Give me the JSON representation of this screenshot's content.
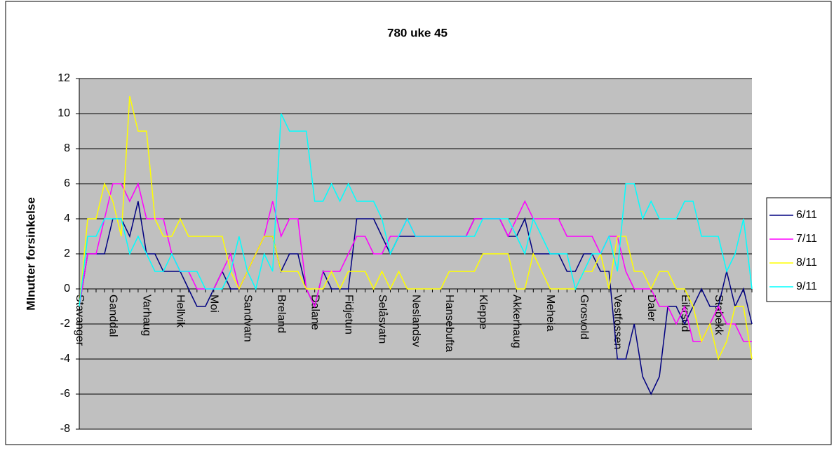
{
  "chart_data": {
    "type": "line",
    "title": "780 uke 45",
    "y_label": "MInutter forsinkelse",
    "categories": [
      "Stavanger",
      null,
      null,
      null,
      "Ganddal",
      null,
      null,
      null,
      "Varhaug",
      null,
      null,
      null,
      "Hellvik",
      null,
      null,
      null,
      "Moi",
      null,
      null,
      null,
      "Sandvatn",
      null,
      null,
      null,
      "Breland",
      null,
      null,
      null,
      "Dalane",
      null,
      null,
      null,
      "Fidjetun",
      null,
      null,
      null,
      "Selåsvatn",
      null,
      null,
      null,
      "Neslandsv",
      null,
      null,
      null,
      "Hansebufta",
      null,
      null,
      null,
      "Kleppe",
      null,
      null,
      null,
      "Akkerhaug",
      null,
      null,
      null,
      "Meheia",
      null,
      null,
      null,
      "Grosvold",
      null,
      null,
      null,
      "Vestfossen",
      null,
      null,
      null,
      "Daler",
      null,
      null,
      null,
      "Eikrsud",
      null,
      null,
      null,
      "Stabekk",
      null,
      null,
      null,
      null
    ],
    "series": [
      {
        "name": "6/11",
        "color": "#000080",
        "values": [
          -1,
          2,
          2,
          2,
          4,
          4,
          3,
          5,
          2,
          2,
          1,
          1,
          1,
          0,
          -1,
          -1,
          0,
          1,
          0,
          0,
          1,
          2,
          3,
          3,
          1,
          2,
          2,
          0,
          -1,
          1,
          0,
          0,
          0,
          4,
          4,
          4,
          3,
          2,
          3,
          3,
          3,
          3,
          3,
          3,
          3,
          3,
          3,
          4,
          4,
          4,
          4,
          3,
          3,
          4,
          2,
          2,
          2,
          2,
          1,
          1,
          2,
          2,
          1,
          1,
          -4,
          -4,
          -2,
          -5,
          -6,
          -5,
          -1,
          -1,
          -2,
          -1,
          0,
          -1,
          -1,
          1,
          -1,
          0,
          -2
        ]
      },
      {
        "name": "7/11",
        "color": "#ff00ff",
        "values": [
          -1,
          2,
          2,
          4,
          6,
          6,
          5,
          6,
          4,
          4,
          4,
          2,
          1,
          1,
          0,
          0,
          0,
          1,
          2,
          0,
          1,
          2,
          3,
          5,
          3,
          4,
          4,
          0,
          -1,
          1,
          1,
          1,
          2,
          3,
          3,
          2,
          2,
          3,
          3,
          4,
          3,
          3,
          3,
          3,
          3,
          3,
          3,
          4,
          4,
          4,
          4,
          3,
          4,
          5,
          4,
          4,
          4,
          4,
          3,
          3,
          3,
          3,
          2,
          3,
          3,
          1,
          0,
          0,
          0,
          -1,
          -1,
          -2,
          -1,
          -3,
          -3,
          -2,
          -1,
          -2,
          -2,
          -3,
          -3
        ]
      },
      {
        "name": "8/11",
        "color": "#ffff00",
        "values": [
          -1,
          4,
          4,
          6,
          5,
          3,
          11,
          9,
          9,
          4,
          3,
          3,
          4,
          3,
          3,
          3,
          3,
          3,
          1,
          0,
          1,
          2,
          3,
          3,
          1,
          1,
          1,
          0,
          0,
          0,
          1,
          0,
          1,
          1,
          1,
          0,
          1,
          0,
          1,
          0,
          0,
          0,
          0,
          0,
          1,
          1,
          1,
          1,
          2,
          2,
          2,
          2,
          0,
          0,
          2,
          1,
          0,
          0,
          0,
          0,
          1,
          1,
          2,
          0,
          3,
          3,
          1,
          1,
          0,
          1,
          1,
          0,
          0,
          -1,
          -3,
          -2,
          -4,
          -3,
          -1,
          -1,
          -4
        ]
      },
      {
        "name": "9/11",
        "color": "#00ffff",
        "values": [
          -1,
          3,
          3,
          4,
          4,
          4,
          2,
          3,
          2,
          1,
          1,
          2,
          1,
          1,
          1,
          0,
          0,
          0,
          1,
          3,
          1,
          0,
          2,
          1,
          10,
          9,
          9,
          9,
          5,
          5,
          6,
          5,
          6,
          5,
          5,
          5,
          4,
          2,
          3,
          4,
          3,
          3,
          3,
          3,
          3,
          3,
          3,
          3,
          4,
          4,
          4,
          4,
          3,
          2,
          4,
          3,
          2,
          2,
          2,
          0,
          1,
          2,
          2,
          3,
          1,
          6,
          6,
          4,
          5,
          4,
          4,
          4,
          5,
          5,
          3,
          3,
          3,
          1,
          2,
          4,
          0
        ]
      }
    ],
    "ylim": [
      -8,
      12
    ],
    "yticks": [
      -8,
      -6,
      -4,
      -2,
      0,
      2,
      4,
      6,
      8,
      10,
      12
    ],
    "grid": true,
    "legend": "right"
  }
}
